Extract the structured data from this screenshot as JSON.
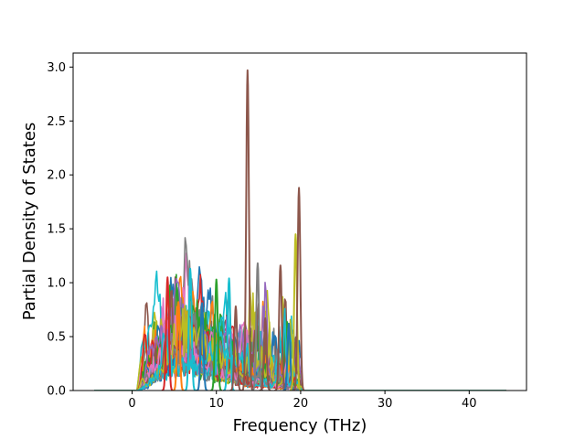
{
  "chart_data": {
    "type": "line",
    "title": "",
    "xlabel": "Frequency (THz)",
    "ylabel": "Partial Density of States",
    "xlim": [
      -7,
      46.8
    ],
    "ylim": [
      0.0,
      3.13
    ],
    "xticks": [
      "0",
      "10",
      "20",
      "30",
      "40"
    ],
    "yticks": [
      "0.0",
      "0.5",
      "1.0",
      "1.5",
      "2.0",
      "2.5",
      "3.0"
    ],
    "grid": false,
    "legend": false,
    "colors": [
      "#1f77b4",
      "#ff7f0e",
      "#2ca02c",
      "#d62728",
      "#9467bd",
      "#8c564b",
      "#e377c2",
      "#7f7f7f",
      "#bcbd22",
      "#17becf"
    ],
    "frequency_range": [
      -4.5,
      44.5
    ],
    "series_count": 30,
    "peaks": [
      {
        "x": 4.2,
        "y": 1.05,
        "color": "#d62728"
      },
      {
        "x": 5.5,
        "y": 0.82,
        "color": "#ff7f0e"
      },
      {
        "x": 6.9,
        "y": 1.13,
        "color": "#17becf"
      },
      {
        "x": 8.3,
        "y": 0.81,
        "color": "#1f77b4"
      },
      {
        "x": 10.0,
        "y": 1.03,
        "color": "#2ca02c"
      },
      {
        "x": 11.5,
        "y": 1.04,
        "color": "#17becf"
      },
      {
        "x": 12.3,
        "y": 0.78,
        "color": "#8c564b"
      },
      {
        "x": 13.7,
        "y": 2.97,
        "color": "#8c564b"
      },
      {
        "x": 14.9,
        "y": 1.18,
        "color": "#7f7f7f"
      },
      {
        "x": 15.8,
        "y": 0.67,
        "color": "#8c564b"
      },
      {
        "x": 17.6,
        "y": 1.16,
        "color": "#8c564b"
      },
      {
        "x": 18.6,
        "y": 0.62,
        "color": "#1f77b4"
      },
      {
        "x": 19.4,
        "y": 1.45,
        "color": "#bcbd22"
      },
      {
        "x": 19.8,
        "y": 1.88,
        "color": "#8c564b"
      }
    ]
  }
}
